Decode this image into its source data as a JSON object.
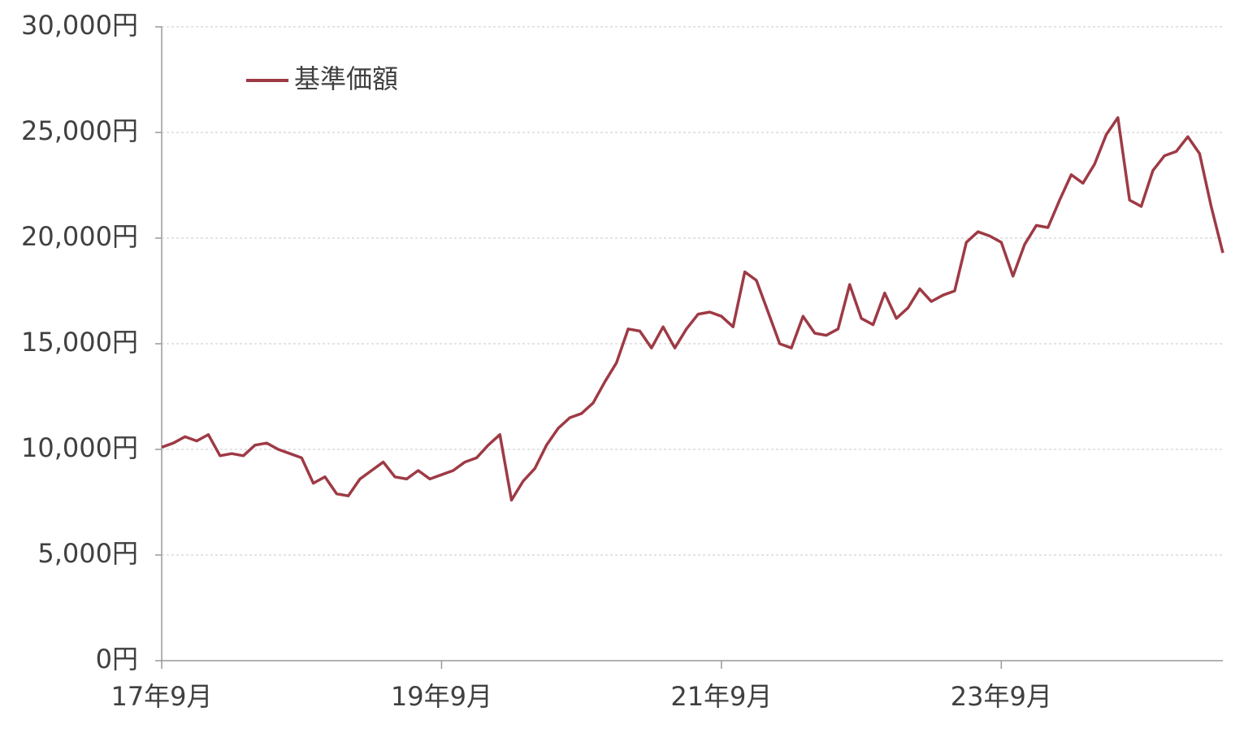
{
  "chart_data": {
    "type": "line",
    "categories": [
      "17年9月",
      null,
      null,
      null,
      null,
      null,
      null,
      null,
      null,
      null,
      null,
      null,
      null,
      null,
      null,
      null,
      null,
      null,
      null,
      null,
      null,
      null,
      null,
      null,
      "19年9月",
      null,
      null,
      null,
      null,
      null,
      null,
      null,
      null,
      null,
      null,
      null,
      null,
      null,
      null,
      null,
      null,
      null,
      null,
      null,
      null,
      null,
      null,
      null,
      "21年9月",
      null,
      null,
      null,
      null,
      null,
      null,
      null,
      null,
      null,
      null,
      null,
      null,
      null,
      null,
      null,
      null,
      null,
      null,
      null,
      null,
      null,
      null,
      null,
      "23年9月",
      null,
      null,
      null,
      null,
      null,
      null,
      null,
      null,
      null,
      null,
      null,
      null,
      null,
      null,
      null,
      null,
      null,
      null,
      null
    ],
    "series": [
      {
        "name": "基準価額",
        "color": "#9e3a45",
        "values": [
          10100,
          10300,
          10600,
          10400,
          10700,
          9700,
          9800,
          9700,
          10200,
          10300,
          10000,
          9800,
          9600,
          8400,
          8700,
          7900,
          7800,
          8600,
          9000,
          9400,
          8700,
          8600,
          9000,
          8600,
          8800,
          9000,
          9400,
          9600,
          10200,
          10700,
          7600,
          8500,
          9100,
          10200,
          11000,
          11500,
          11700,
          12200,
          13200,
          14100,
          15700,
          15600,
          14800,
          15800,
          14800,
          15700,
          16400,
          16500,
          16300,
          15800,
          18400,
          18000,
          16500,
          15000,
          14800,
          16300,
          15500,
          15400,
          15700,
          17800,
          16200,
          15900,
          17400,
          16200,
          16700,
          17600,
          17000,
          17300,
          17500,
          19800,
          20300,
          20100,
          19800,
          18200,
          19700,
          20600,
          20500,
          21800,
          23000,
          22600,
          23500,
          24900,
          25700,
          21800,
          21500,
          23200,
          23900,
          24100,
          24800,
          24000,
          21500,
          19300
        ]
      }
    ],
    "ylim": [
      0,
      30000
    ],
    "yticks": [
      {
        "value": 0,
        "label": "0円"
      },
      {
        "value": 5000,
        "label": "5,000円"
      },
      {
        "value": 10000,
        "label": "10,000円"
      },
      {
        "value": 15000,
        "label": "15,000円"
      },
      {
        "value": 20000,
        "label": "20,000円"
      },
      {
        "value": 25000,
        "label": "25,000円"
      },
      {
        "value": 30000,
        "label": "30,000円"
      }
    ],
    "grid": true,
    "legend": "upper left"
  }
}
